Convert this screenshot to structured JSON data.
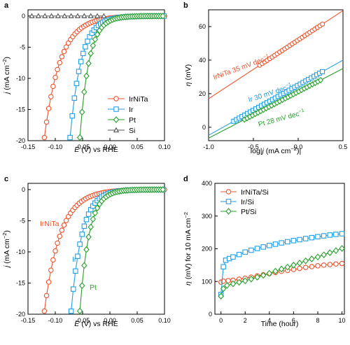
{
  "figure": {
    "colors": {
      "IrNiTa": "#f0522a",
      "Ir": "#1f9ee5",
      "Pt": "#27a12b",
      "Si": "#555555"
    },
    "legend_panel_a": [
      "IrNiTa",
      "Ir",
      "Pt",
      "Si"
    ],
    "legend_panel_d": [
      "IrNiTa/Si",
      "Ir/Si",
      "Pt/Si"
    ]
  },
  "chart_data": [
    {
      "panel": "a",
      "type": "line",
      "xlabel_var": "E",
      "xlabel_rest": " (V) vs RHE",
      "ylabel_var": "j",
      "ylabel_rest": " (mA cm",
      "ylabel_sup": "−2",
      "ylabel_end": ")",
      "xlim": [
        -0.15,
        0.1
      ],
      "ylim": [
        -20,
        1
      ],
      "xticks": [
        "-0.15",
        "-0.10",
        "-0.05",
        "0.00",
        "0.05",
        "0.10"
      ],
      "yticks": [
        "-20",
        "-15",
        "-10",
        "-5",
        "0"
      ],
      "legend": "center-right",
      "series": [
        {
          "name": "IrNiTa",
          "marker": "circle",
          "j0": -19.5,
          "x0": -0.12,
          "x_end": 0.1,
          "x_step": 0.004
        },
        {
          "name": "Ir",
          "marker": "square",
          "j0": -19.5,
          "x0": -0.073,
          "x_end": 0.1,
          "x_step": 0.004
        },
        {
          "name": "Pt",
          "marker": "diamond",
          "j0": -19.5,
          "x0": -0.055,
          "x_end": 0.1,
          "x_step": 0.004
        },
        {
          "name": "Si",
          "marker": "triangle",
          "x": [
            -0.143,
            -0.131,
            -0.119,
            -0.107,
            -0.095,
            -0.083,
            -0.071,
            -0.059,
            -0.047,
            -0.035,
            -0.023,
            -0.011
          ],
          "y": [
            0,
            0,
            0,
            0,
            0,
            0,
            0,
            0,
            0,
            0,
            0,
            0
          ]
        }
      ]
    },
    {
      "panel": "b",
      "type": "scatter",
      "xlabel_pre": "log|",
      "xlabel_var": "j",
      "xlabel_rest": " (mA cm",
      "xlabel_sup": "−2",
      "xlabel_end": ")|",
      "ylabel_var": "η",
      "ylabel_rest": " (mV)",
      "xlim": [
        -1.0,
        0.5
      ],
      "ylim": [
        -8,
        70
      ],
      "xticks": [
        "-1.0",
        "-0.5",
        "0.0",
        "0.5"
      ],
      "yticks": [
        "0",
        "20",
        "40",
        "60"
      ],
      "series": [
        {
          "name": "IrNiTa",
          "slope": 35,
          "fit_at_m1": 17,
          "fit_at_05": 69.5,
          "data_x_range": [
            -0.43,
            0.27
          ],
          "points": 26,
          "marker": "circle",
          "annotation_name": "IrNiTa",
          "annotation_value": "35 mV dec",
          "annotation_sup": "−1"
        },
        {
          "name": "Ir",
          "slope": 30,
          "fit_at_m1": -4.8,
          "fit_at_05": 40,
          "data_x_range": [
            -0.72,
            0.27
          ],
          "points": 33,
          "marker": "square",
          "annotation_name": "Ir",
          "annotation_value": "30 mV dec",
          "annotation_sup": "−1"
        },
        {
          "name": "Pt",
          "slope": 28,
          "fit_at_m1": -6.5,
          "fit_at_05": 35,
          "data_x_range": [
            -0.6,
            0.25
          ],
          "points": 29,
          "marker": "diamond",
          "annotation_name": "Pt",
          "annotation_value": "28 mV dec",
          "annotation_sup": "−1"
        }
      ]
    },
    {
      "panel": "c",
      "type": "line",
      "xlabel_var": "E",
      "xlabel_rest": " (V) vs RHE",
      "ylabel_var": "j",
      "ylabel_rest": " (mA cm",
      "ylabel_sup": "−2",
      "ylabel_end": ")",
      "xlim": [
        -0.15,
        0.1
      ],
      "ylim": [
        -20,
        1
      ],
      "xticks": [
        "-0.15",
        "-0.10",
        "-0.05",
        "0.00",
        "0.05",
        "0.10"
      ],
      "yticks": [
        "-20",
        "-15",
        "-10",
        "-5",
        "0"
      ],
      "series": [
        {
          "name": "IrNiTa",
          "marker": "circle",
          "j0": -19.5,
          "x0": -0.12,
          "x_end": 0.1,
          "x_step": 0.004
        },
        {
          "name": "Ir",
          "marker": "square",
          "j0": -19.5,
          "x0": -0.071,
          "x_end": 0.1,
          "x_step": 0.004
        },
        {
          "name": "Pt",
          "marker": "diamond",
          "j0": -19.5,
          "x0": -0.055,
          "x_end": 0.1,
          "x_step": 0.004
        }
      ]
    },
    {
      "panel": "d",
      "type": "line",
      "xlabel": "Time (hour)",
      "ylabel_var": "η",
      "ylabel_rest": " (mV) for 10 mA cm",
      "ylabel_sup": "−2",
      "xlim": [
        -0.5,
        10.2
      ],
      "ylim": [
        0,
        400
      ],
      "xticks": [
        "0",
        "2",
        "4",
        "6",
        "8",
        "10"
      ],
      "yticks": [
        "0",
        "100",
        "200",
        "300",
        "400"
      ],
      "legend": "top-left",
      "series": [
        {
          "name": "IrNiTa/Si",
          "marker": "circle",
          "x": [
            0,
            0.2,
            1,
            2,
            3,
            4,
            5,
            6,
            7,
            8,
            9,
            10
          ],
          "y": [
            98,
            101,
            104,
            110,
            117,
            124,
            131,
            137,
            143,
            148,
            152,
            155
          ]
        },
        {
          "name": "Ir/Si",
          "marker": "square",
          "x": [
            0,
            0.2,
            0.4,
            1,
            2,
            3,
            4,
            5,
            6,
            7,
            8,
            9,
            10
          ],
          "y": [
            60,
            145,
            165,
            175,
            190,
            201,
            210,
            218,
            225,
            231,
            237,
            242,
            246
          ]
        },
        {
          "name": "Pt/Si",
          "marker": "diamond",
          "x": [
            0,
            0.2,
            0.5,
            1,
            2,
            3,
            4,
            5,
            6,
            7,
            8,
            9,
            10
          ],
          "y": [
            55,
            78,
            88,
            93,
            102,
            113,
            125,
            138,
            150,
            163,
            175,
            188,
            201
          ]
        }
      ]
    }
  ]
}
